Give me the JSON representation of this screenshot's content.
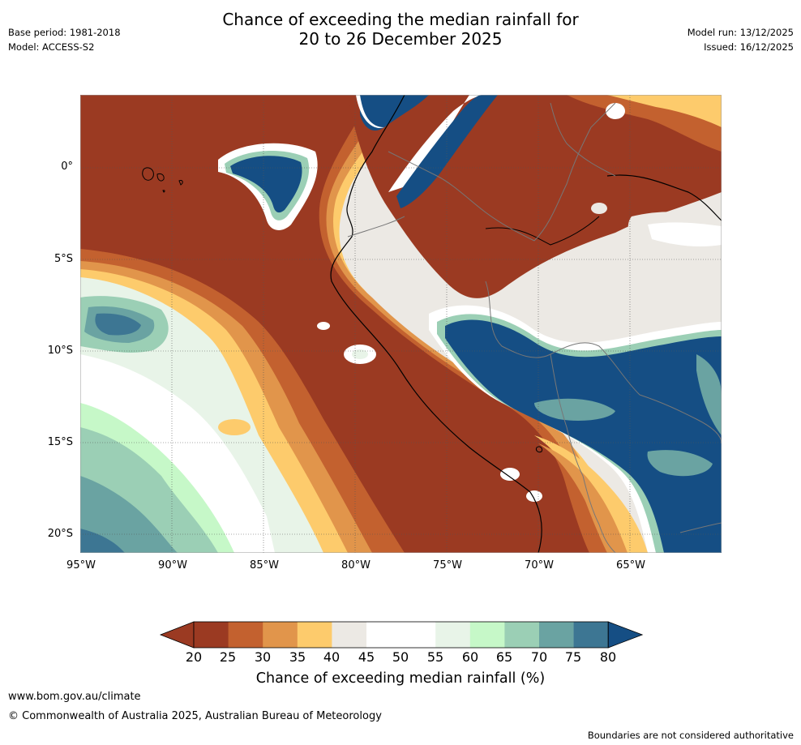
{
  "header": {
    "title_line1": "Chance of exceeding the median rainfall for",
    "title_line2": "20 to 26 December 2025",
    "base_period": "Base period: 1981-2018",
    "model": "Model: ACCESS-S2",
    "model_run": "Model run: 13/12/2025",
    "issued": "Issued: 16/12/2025"
  },
  "map": {
    "region": "Western South America and eastern Pacific",
    "lon_range": [
      -95,
      -60
    ],
    "lat_range": [
      -21,
      4
    ],
    "y_ticks": [
      "0°",
      "5°S",
      "10°S",
      "15°S",
      "20°S"
    ],
    "x_ticks": [
      "95°W",
      "90°W",
      "85°W",
      "80°W",
      "75°W",
      "70°W",
      "65°W"
    ]
  },
  "colorbar": {
    "labels": [
      "20",
      "25",
      "30",
      "35",
      "40",
      "45",
      "50",
      "55",
      "60",
      "65",
      "70",
      "75",
      "80"
    ],
    "colors": [
      "#9b3a22",
      "#c3612f",
      "#e1954b",
      "#fdcb6c",
      "#ece9e4",
      "#ffffff",
      "#ffffff",
      "#e8f4e8",
      "#c6f8c8",
      "#9bcfb5",
      "#6aa3a2",
      "#3d7693",
      "#154e84"
    ],
    "title": "Chance of exceeding median rainfall (%)"
  },
  "footer": {
    "website": "www.bom.gov.au/climate",
    "copyright": "© Commonwealth of Australia 2025, Australian Bureau of Meteorology",
    "disclaimer": "Boundaries are not considered authoritative"
  }
}
